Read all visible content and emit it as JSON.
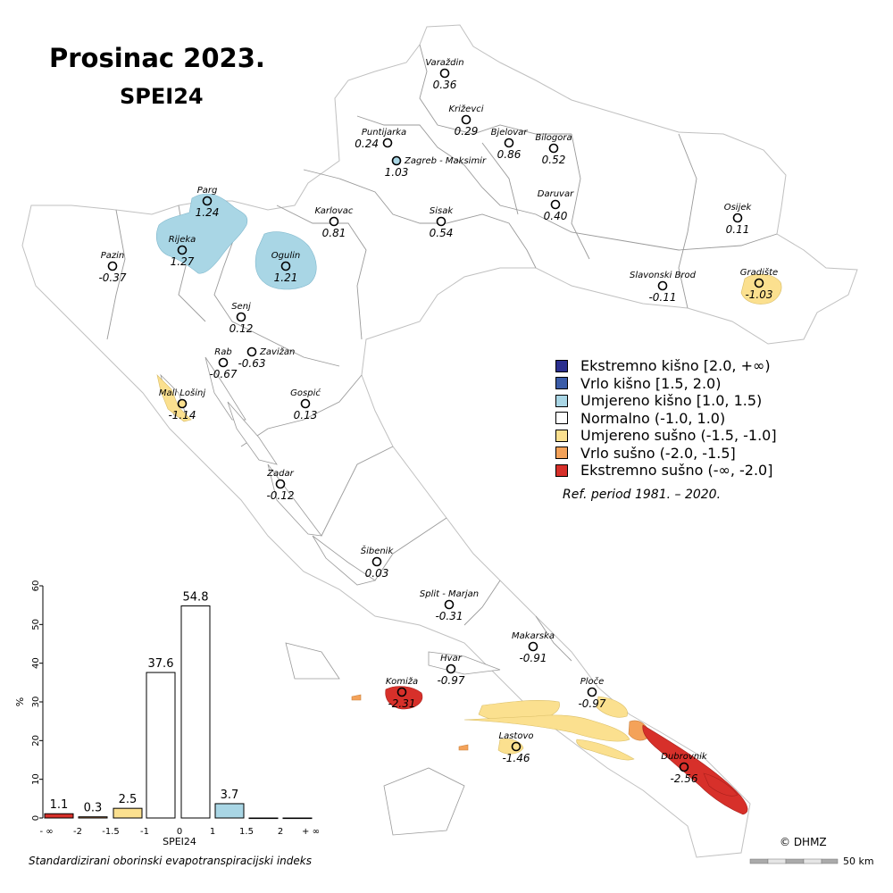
{
  "title": "Prosinac 2023.",
  "subtitle": "SPEI24",
  "legend": [
    {
      "label": "Ekstremno kišno [2.0, +∞)",
      "color": "#2b2f8f"
    },
    {
      "label": "Vrlo kišno [1.5, 2.0)",
      "color": "#3b5ca8"
    },
    {
      "label": "Umjereno kišno [1.0, 1.5)",
      "color": "#a9d6e5"
    },
    {
      "label": "Normalno (-1.0, 1.0)",
      "color": "#ffffff"
    },
    {
      "label": "Umjereno sušno (-1.5, -1.0]",
      "color": "#fbe08f"
    },
    {
      "label": "Vrlo sušno (-2.0, -1.5]",
      "color": "#f4a259"
    },
    {
      "label": "Ekstremno sušno (-∞, -2.0]",
      "color": "#d7302a"
    }
  ],
  "ref_period": "Ref. period 1981. – 2020.",
  "stations": [
    {
      "name": "Varaždin",
      "value": "0.36",
      "cls": "normal"
    },
    {
      "name": "Križevci",
      "value": "0.29",
      "cls": "normal"
    },
    {
      "name": "Puntijarka",
      "value": "0.24",
      "cls": "normal"
    },
    {
      "name": "Bjelovar",
      "value": "0.86",
      "cls": "normal"
    },
    {
      "name": "Bilogora",
      "value": "0.52",
      "cls": "normal"
    },
    {
      "name": "Zagreb - Maksimir",
      "value": "1.03",
      "cls": "wet"
    },
    {
      "name": "Parg",
      "value": "1.24",
      "cls": "wet"
    },
    {
      "name": "Karlovac",
      "value": "0.81",
      "cls": "normal"
    },
    {
      "name": "Sisak",
      "value": "0.54",
      "cls": "normal"
    },
    {
      "name": "Daruvar",
      "value": "0.40",
      "cls": "normal"
    },
    {
      "name": "Osijek",
      "value": "0.11",
      "cls": "normal"
    },
    {
      "name": "Rijeka",
      "value": "1.27",
      "cls": "wet"
    },
    {
      "name": "Pazin",
      "value": "-0.37",
      "cls": "normal"
    },
    {
      "name": "Ogulin",
      "value": "1.21",
      "cls": "wet"
    },
    {
      "name": "Slavonski Brod",
      "value": "-0.11",
      "cls": "normal"
    },
    {
      "name": "Gradište",
      "value": "-1.03",
      "cls": "dry"
    },
    {
      "name": "Senj",
      "value": "0.12",
      "cls": "normal"
    },
    {
      "name": "Rab",
      "value": "-0.67",
      "cls": "normal"
    },
    {
      "name": "Zavižan",
      "value": "-0.63",
      "cls": "normal"
    },
    {
      "name": "Mali Lošinj",
      "value": "-1.14",
      "cls": "dry"
    },
    {
      "name": "Gospić",
      "value": "0.13",
      "cls": "normal"
    },
    {
      "name": "Zadar",
      "value": "-0.12",
      "cls": "normal"
    },
    {
      "name": "Šibenik",
      "value": "0.03",
      "cls": "normal"
    },
    {
      "name": "Split - Marjan",
      "value": "-0.31",
      "cls": "normal"
    },
    {
      "name": "Makarska",
      "value": "-0.91",
      "cls": "normal"
    },
    {
      "name": "Hvar",
      "value": "-0.97",
      "cls": "normal"
    },
    {
      "name": "Ploče",
      "value": "-0.97",
      "cls": "normal"
    },
    {
      "name": "Komiža",
      "value": "-2.31",
      "cls": "extreme"
    },
    {
      "name": "Lastovo",
      "value": "-1.46",
      "cls": "dry"
    },
    {
      "name": "Dubrovnik",
      "value": "-2.56",
      "cls": "extreme"
    }
  ],
  "chart_data": {
    "type": "bar",
    "categories": [
      "(-∞, -2)",
      "(-2, -1.5)",
      "(-1.5, -1)",
      "(-1, 0)",
      "(0, 1)",
      "(1, 1.5)",
      "(1.5, 2)",
      "(2, +∞)"
    ],
    "values": [
      1.1,
      0.3,
      2.5,
      37.6,
      54.8,
      3.7,
      0,
      0
    ],
    "value_labels": [
      "1.1",
      "0.3",
      "2.5",
      "37.6",
      "54.8",
      "3.7",
      "",
      ""
    ],
    "bar_colors": [
      "#d7302a",
      "#f4a259",
      "#fbe08f",
      "#ffffff",
      "#ffffff",
      "#a9d6e5",
      "#3b5ca8",
      "#2b2f8f"
    ],
    "x_ticks": [
      "- ∞",
      "-2",
      "-1.5",
      "-1",
      "0",
      "1",
      "1.5",
      "2",
      "+ ∞"
    ],
    "y_ticks": [
      "0",
      "10",
      "20",
      "30",
      "40",
      "50",
      "60"
    ],
    "ylim": [
      0,
      60
    ],
    "xlabel": "SPEI24",
    "ylabel": "%"
  },
  "footer_label": "Standardizirani oborinski evapotranspiracijski indeks",
  "copyright": "© DHMZ",
  "scale_label": "50 km"
}
